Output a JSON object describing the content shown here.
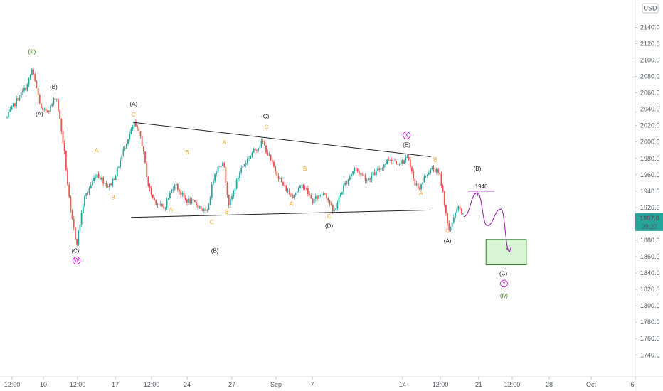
{
  "currency_label": "USD",
  "price_marker": {
    "value": "1907.0",
    "timer": "39:37",
    "price": 1907
  },
  "colors": {
    "up": "#26a69a",
    "down": "#ef5350",
    "trendline": "#222222",
    "wave_black": "#131722",
    "wave_orange": "#f5a623",
    "wave_magenta": "#d71fd8",
    "wave_green": "#3e7d1f",
    "target_box_fill": "#d7f5d2",
    "target_box_stroke": "#2e7d32",
    "projection": "#9c27b0",
    "price_tag": "#26a69a"
  },
  "chart_data": {
    "type": "candlestick",
    "x_ticks": [
      "12:00",
      "10",
      "12:00",
      "17",
      "12:00",
      "24",
      "27",
      "Sep",
      "7",
      "14",
      "12:00",
      "21",
      "12:00",
      "28",
      "Oct",
      "6"
    ],
    "y_ticks": [
      2140,
      2120,
      2100,
      2080,
      2060,
      2040,
      2020,
      2000,
      1980,
      1960,
      1940,
      1920,
      1900,
      1880,
      1860,
      1840,
      1820,
      1800,
      1780,
      1760,
      1740
    ],
    "y_tick_labels": [
      "2140.0",
      "2120.0",
      "2100.0",
      "2080.0",
      "2060.0",
      "2040.0",
      "2020.0",
      "2000.0",
      "1980.0",
      "1960.0",
      "1940.0",
      "1920.0",
      "1900.0",
      "1880.0",
      "1860.0",
      "1840.0",
      "1820.0",
      "1800.0",
      "1780.0",
      "1760.0",
      "1740.0"
    ],
    "ylim": [
      1722,
      2156
    ],
    "price_path": [
      {
        "t": 0,
        "p": 2030
      },
      {
        "t": 1.6,
        "p": 2052
      },
      {
        "t": 3.2,
        "p": 2068
      },
      {
        "t": 4.0,
        "p": 2088
      },
      {
        "t": 4.8,
        "p": 2064
      },
      {
        "t": 5.6,
        "p": 2036
      },
      {
        "t": 7.0,
        "p": 2042
      },
      {
        "t": 7.9,
        "p": 2058
      },
      {
        "t": 9.2,
        "p": 1990
      },
      {
        "t": 10.2,
        "p": 1915
      },
      {
        "t": 11.2,
        "p": 1876
      },
      {
        "t": 12.4,
        "p": 1930
      },
      {
        "t": 14.4,
        "p": 1962
      },
      {
        "t": 16.4,
        "p": 1945
      },
      {
        "t": 17.6,
        "p": 1962
      },
      {
        "t": 19.2,
        "p": 2000
      },
      {
        "t": 20.5,
        "p": 2022
      },
      {
        "t": 21.6,
        "p": 2005
      },
      {
        "t": 22.8,
        "p": 1945
      },
      {
        "t": 23.6,
        "p": 1930
      },
      {
        "t": 25.2,
        "p": 1918
      },
      {
        "t": 27.0,
        "p": 1950
      },
      {
        "t": 28.6,
        "p": 1930
      },
      {
        "t": 30.6,
        "p": 1924
      },
      {
        "t": 32.2,
        "p": 1912
      },
      {
        "t": 33.4,
        "p": 1962
      },
      {
        "t": 34.8,
        "p": 1978
      },
      {
        "t": 35.8,
        "p": 1922
      },
      {
        "t": 37.6,
        "p": 1966
      },
      {
        "t": 39.6,
        "p": 1988
      },
      {
        "t": 41.2,
        "p": 2000
      },
      {
        "t": 42.6,
        "p": 1975
      },
      {
        "t": 44.4,
        "p": 1948
      },
      {
        "t": 45.8,
        "p": 1934
      },
      {
        "t": 47.8,
        "p": 1948
      },
      {
        "t": 49.2,
        "p": 1927
      },
      {
        "t": 51.2,
        "p": 1940
      },
      {
        "t": 52.6,
        "p": 1913
      },
      {
        "t": 54.2,
        "p": 1945
      },
      {
        "t": 56.0,
        "p": 1968
      },
      {
        "t": 58.0,
        "p": 1954
      },
      {
        "t": 59.8,
        "p": 1965
      },
      {
        "t": 61.6,
        "p": 1980
      },
      {
        "t": 63.2,
        "p": 1975
      },
      {
        "t": 64.8,
        "p": 1980
      },
      {
        "t": 65.6,
        "p": 1950
      },
      {
        "t": 66.6,
        "p": 1944
      },
      {
        "t": 67.6,
        "p": 1962
      },
      {
        "t": 68.8,
        "p": 1968
      },
      {
        "t": 69.8,
        "p": 1958
      },
      {
        "t": 70.6,
        "p": 1922
      },
      {
        "t": 71.2,
        "p": 1888
      },
      {
        "t": 72.0,
        "p": 1910
      },
      {
        "t": 72.8,
        "p": 1920
      },
      {
        "t": 73.6,
        "p": 1908
      }
    ],
    "trendlines": [
      {
        "name": "triangle-upper",
        "x1": 20.3,
        "y1": 2024,
        "x2": 68.3,
        "y2": 1982
      },
      {
        "name": "triangle-lower",
        "x1": 20.0,
        "y1": 1908,
        "x2": 68.3,
        "y2": 1917
      }
    ],
    "horizontal_level": {
      "value": 1940,
      "label": "1940",
      "x1": 74.3,
      "x2": 78.6
    },
    "target_zone": {
      "x1": 77.2,
      "x2": 83.7,
      "y_top": 1881,
      "y_bottom": 1850
    },
    "projection_path": [
      {
        "t": 73.6,
        "p": 1909
      },
      {
        "t": 75.8,
        "p": 1938
      },
      {
        "t": 77.4,
        "p": 1898
      },
      {
        "t": 79.6,
        "p": 1918
      },
      {
        "t": 81.0,
        "p": 1866
      }
    ],
    "wave_labels": [
      {
        "text": "(iii)",
        "t": 4.0,
        "p": 2108,
        "color": "green",
        "size": 12
      },
      {
        "text": "(A)",
        "t": 5.2,
        "p": 2032,
        "color": "black",
        "size": 8
      },
      {
        "text": "(B)",
        "t": 7.5,
        "p": 2065,
        "color": "black",
        "size": 8
      },
      {
        "text": "(C)",
        "t": 11.0,
        "p": 1865,
        "color": "black",
        "size": 8
      },
      {
        "text": "W",
        "t": 11.2,
        "p": 1853,
        "color": "magenta",
        "size": 7,
        "circled": true
      },
      {
        "text": "A",
        "t": 14.4,
        "p": 1987,
        "color": "orange",
        "size": 8
      },
      {
        "text": "B",
        "t": 17.1,
        "p": 1930,
        "color": "orange",
        "size": 8
      },
      {
        "text": "(A)",
        "t": 20.4,
        "p": 2044,
        "color": "black",
        "size": 8
      },
      {
        "text": "C",
        "t": 20.4,
        "p": 2031,
        "color": "orange",
        "size": 8
      },
      {
        "text": "B",
        "t": 29.0,
        "p": 1985,
        "color": "orange",
        "size": 8
      },
      {
        "text": "A",
        "t": 26.4,
        "p": 1915,
        "color": "orange",
        "size": 8
      },
      {
        "text": "C",
        "t": 33.0,
        "p": 1900,
        "color": "orange",
        "size": 8
      },
      {
        "text": "A",
        "t": 35.0,
        "p": 1997,
        "color": "orange",
        "size": 8
      },
      {
        "text": "B",
        "t": 35.4,
        "p": 1912,
        "color": "orange",
        "size": 8
      },
      {
        "text": "(B)",
        "t": 33.5,
        "p": 1865,
        "color": "black",
        "size": 8
      },
      {
        "text": "(C)",
        "t": 41.6,
        "p": 2029,
        "color": "black",
        "size": 8
      },
      {
        "text": "C",
        "t": 41.8,
        "p": 2016,
        "color": "orange",
        "size": 8
      },
      {
        "text": "B",
        "t": 48.0,
        "p": 1965,
        "color": "orange",
        "size": 8
      },
      {
        "text": "A",
        "t": 45.8,
        "p": 1922,
        "color": "orange",
        "size": 8
      },
      {
        "text": "C",
        "t": 51.9,
        "p": 1907,
        "color": "orange",
        "size": 8
      },
      {
        "text": "(D)",
        "t": 51.9,
        "p": 1895,
        "color": "black",
        "size": 8
      },
      {
        "text": "X",
        "t": 64.4,
        "p": 2006,
        "color": "magenta",
        "size": 7,
        "circled": true
      },
      {
        "text": "(E)",
        "t": 64.4,
        "p": 1994,
        "color": "black",
        "size": 8
      },
      {
        "text": "B",
        "t": 69.0,
        "p": 1976,
        "color": "orange",
        "size": 8
      },
      {
        "text": "A",
        "t": 66.7,
        "p": 1935,
        "color": "orange",
        "size": 8
      },
      {
        "text": "C",
        "t": 71.0,
        "p": 1889,
        "color": "orange",
        "size": 8
      },
      {
        "text": "(A)",
        "t": 71.0,
        "p": 1877,
        "color": "black",
        "size": 8
      },
      {
        "text": "(B)",
        "t": 75.8,
        "p": 1965,
        "color": "black",
        "size": 8
      },
      {
        "text": "(C)",
        "t": 80.0,
        "p": 1837,
        "color": "black",
        "size": 8
      },
      {
        "text": "Y",
        "t": 80.1,
        "p": 1825,
        "color": "magenta",
        "size": 7,
        "circled": true
      },
      {
        "text": "(iv)",
        "t": 80.1,
        "p": 1810,
        "color": "green",
        "size": 12
      }
    ]
  }
}
